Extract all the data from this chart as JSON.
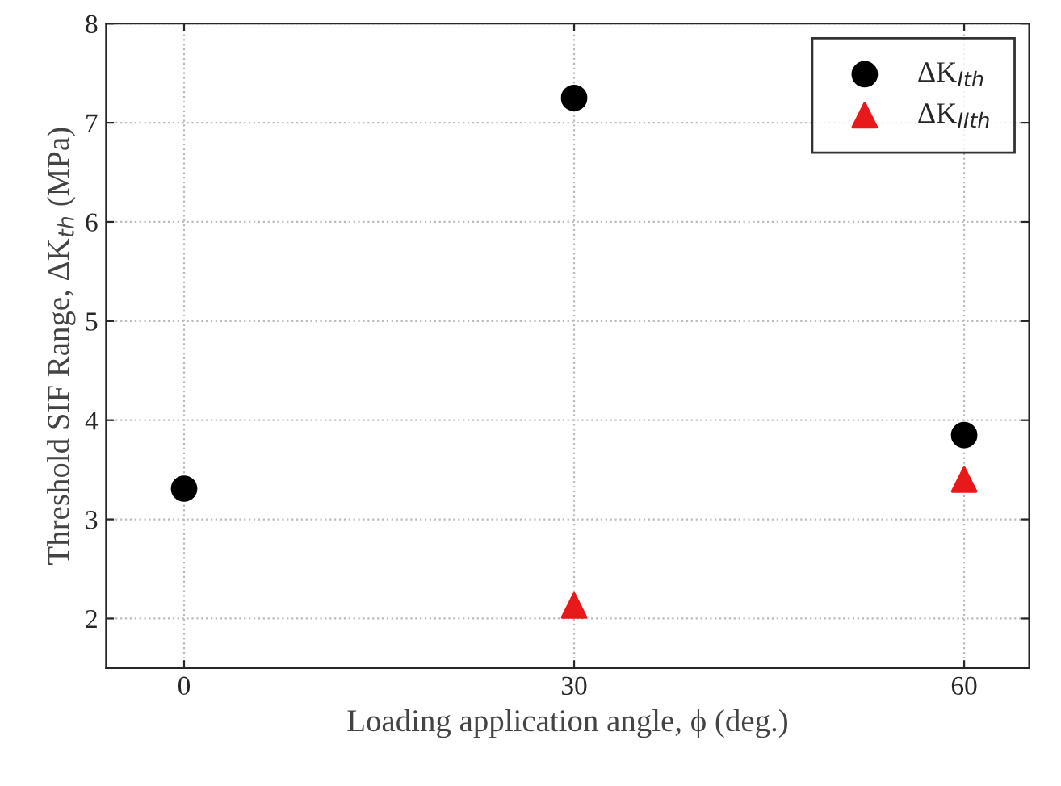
{
  "chart_data": {
    "type": "scatter",
    "xlabel": "Loading application angle, ϕ (deg.)",
    "ylabel": "Threshold SIF Range, ΔK$_{th}$ (MPa)",
    "xlim": [
      -6,
      65
    ],
    "xticks": [
      0,
      30,
      60
    ],
    "ylim": [
      1.5,
      8
    ],
    "yticks": [
      2,
      3,
      4,
      5,
      6,
      7,
      8
    ],
    "grid": true,
    "legend": "top right",
    "series": [
      {
        "name": "ΔK$_{Ith}$",
        "color": "#000000",
        "marker": "circle",
        "x": [
          0,
          30,
          60
        ],
        "values": [
          3.31,
          7.25,
          3.85
        ]
      },
      {
        "name": "ΔK$_{IIth}$",
        "color": "#e8191b",
        "marker": "triangle",
        "x": [
          30,
          60
        ],
        "values": [
          2.13,
          3.4
        ]
      }
    ]
  }
}
